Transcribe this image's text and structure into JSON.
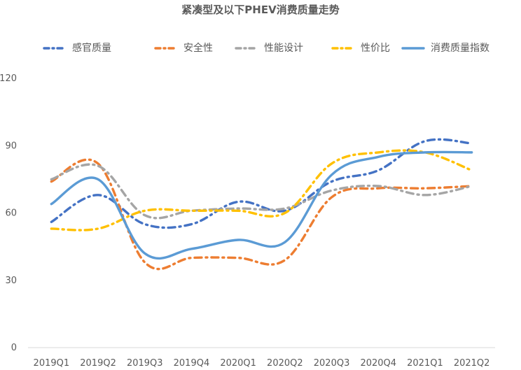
{
  "chart_data": {
    "type": "line",
    "title": "紧凑型及以下PHEV消费质量走势",
    "categories": [
      "2019Q1",
      "2019Q2",
      "2019Q3",
      "2019Q4",
      "2020Q1",
      "2020Q2",
      "2020Q3",
      "2020Q4",
      "2021Q1",
      "2021Q2"
    ],
    "xlabel": "",
    "ylabel": "",
    "ylim": [
      0,
      120
    ],
    "yticks": [
      0,
      30,
      60,
      90,
      120
    ],
    "grid": false,
    "legend_position": "top",
    "series": [
      {
        "name": "感官质量",
        "color": "#4472c4",
        "style": "dashdot",
        "values": [
          56,
          68,
          55,
          55,
          65,
          61,
          74,
          79,
          92,
          91
        ]
      },
      {
        "name": "安全性",
        "color": "#ed7d31",
        "style": "dashdot",
        "values": [
          74,
          82,
          38,
          40,
          40,
          39,
          67,
          71,
          71,
          72
        ]
      },
      {
        "name": "性能设计",
        "color": "#a5a5a5",
        "style": "dashdot",
        "values": [
          75,
          81,
          59,
          61,
          62,
          62,
          70,
          72,
          68,
          72
        ]
      },
      {
        "name": "性价比",
        "color": "#ffc000",
        "style": "dashdot",
        "values": [
          53,
          53,
          61,
          61,
          61,
          60,
          82,
          87,
          87,
          79
        ]
      },
      {
        "name": "消费质量指数",
        "color": "#5b9bd5",
        "style": "solid",
        "values": [
          64,
          75,
          42,
          44,
          48,
          47,
          77,
          85,
          87,
          87
        ]
      }
    ]
  }
}
